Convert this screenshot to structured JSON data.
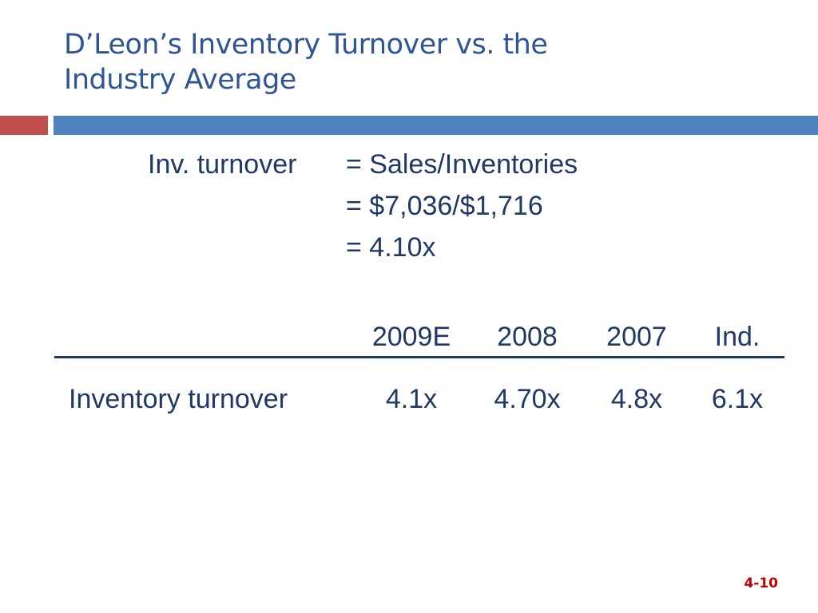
{
  "slide": {
    "title_line1": "D’Leon’s Inventory Turnover vs. the",
    "title_line2": "Industry Average",
    "page_number": "4-10"
  },
  "formula": {
    "label": "Inv. turnover",
    "line1": "= Sales/Inventories",
    "line2": "= $7,036/$1,716",
    "line3": "= 4.10x"
  },
  "table": {
    "headers": [
      "2009E",
      "2008",
      "2007",
      "Ind."
    ],
    "rows": [
      {
        "label": "Inventory turnover",
        "values": [
          "4.1x",
          "4.70x",
          "4.8x",
          "6.1x"
        ]
      }
    ]
  },
  "colors": {
    "title": "#2F5597",
    "body_text": "#1F3864",
    "accent_red": "#C0504D",
    "accent_blue": "#4F81BD",
    "page_number": "#C00000"
  }
}
